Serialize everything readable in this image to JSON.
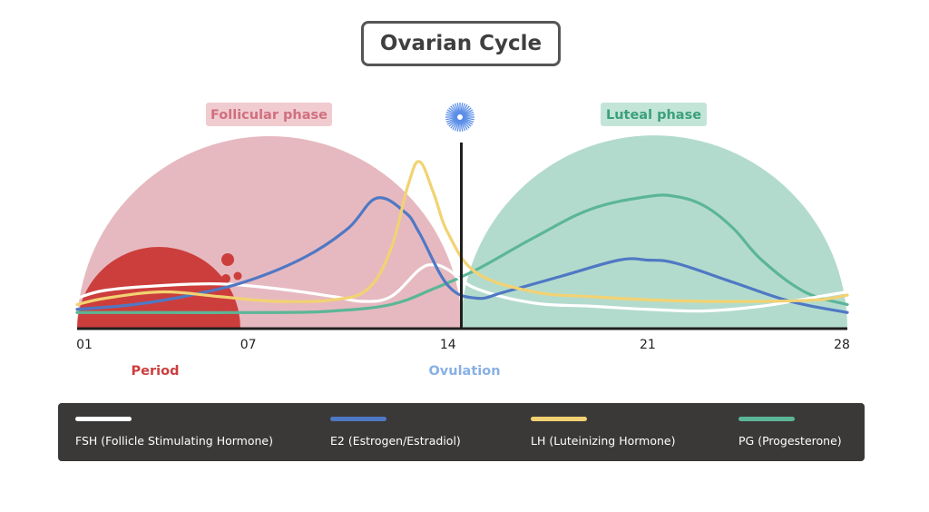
{
  "title": "Ovarian Cycle",
  "phases": {
    "follicular": "Follicular phase",
    "luteal": "Luteal phase"
  },
  "markers": {
    "period": "Period",
    "ovulation": "Ovulation"
  },
  "x_ticks": [
    "01",
    "07",
    "14",
    "21",
    "28"
  ],
  "colors": {
    "follicular_fill": "#e6b9c0",
    "follicular_label_bg": "#f0ccd1",
    "follicular_label_text": "#d0707f",
    "luteal_fill": "#b3dbcd",
    "luteal_label_bg": "#c3e5d8",
    "luteal_label_text": "#3aa07c",
    "period": "#cc3e3c",
    "ovulation_text": "#88b0e6",
    "sun": "#5b8ee8",
    "legend_bg": "#3a3938"
  },
  "chart_data": {
    "type": "line",
    "xlabel": "",
    "ylabel": "",
    "xlim": [
      1,
      28
    ],
    "ylim": [
      0,
      1
    ],
    "legend_position": "bottom",
    "series": [
      {
        "name": "FSH (Follicle Stimulating Hormone)",
        "color": "#ffffff",
        "x": [
          1,
          2,
          4,
          6,
          8,
          10,
          11,
          12,
          13,
          13.5,
          14,
          15,
          17,
          19,
          21,
          23,
          25,
          27,
          28
        ],
        "y": [
          0.14,
          0.19,
          0.22,
          0.23,
          0.2,
          0.15,
          0.12,
          0.15,
          0.32,
          0.35,
          0.32,
          0.2,
          0.11,
          0.09,
          0.07,
          0.06,
          0.09,
          0.15,
          0.18
        ]
      },
      {
        "name": "E2 (Estrogen/Estradiol)",
        "color": "#4f78c4",
        "x": [
          1,
          3,
          5,
          7,
          9,
          10.5,
          11.5,
          12.5,
          13,
          14,
          15,
          16,
          18,
          20,
          21,
          22,
          24,
          26,
          28
        ],
        "y": [
          0.07,
          0.1,
          0.16,
          0.25,
          0.4,
          0.58,
          0.77,
          0.68,
          0.55,
          0.22,
          0.14,
          0.18,
          0.28,
          0.38,
          0.38,
          0.36,
          0.24,
          0.12,
          0.05
        ]
      },
      {
        "name": "LH (Luteinizing Hormone)",
        "color": "#f2d272",
        "x": [
          1,
          2,
          4,
          6,
          8,
          10,
          11.2,
          12,
          12.6,
          13.0,
          13.5,
          14,
          15,
          17,
          19,
          21,
          23,
          25,
          27,
          28
        ],
        "y": [
          0.1,
          0.14,
          0.18,
          0.15,
          0.12,
          0.13,
          0.2,
          0.45,
          0.85,
          1.0,
          0.8,
          0.55,
          0.3,
          0.18,
          0.15,
          0.13,
          0.12,
          0.12,
          0.13,
          0.16
        ]
      },
      {
        "name": "PG (Progesterone)",
        "color": "#5bb697",
        "x": [
          1,
          4,
          8,
          10,
          12,
          13.5,
          15,
          17,
          19,
          21,
          22,
          23,
          24,
          25,
          26.5,
          28
        ],
        "y": [
          0.05,
          0.05,
          0.05,
          0.06,
          0.1,
          0.2,
          0.32,
          0.52,
          0.7,
          0.78,
          0.78,
          0.72,
          0.58,
          0.38,
          0.18,
          0.1
        ]
      }
    ]
  }
}
